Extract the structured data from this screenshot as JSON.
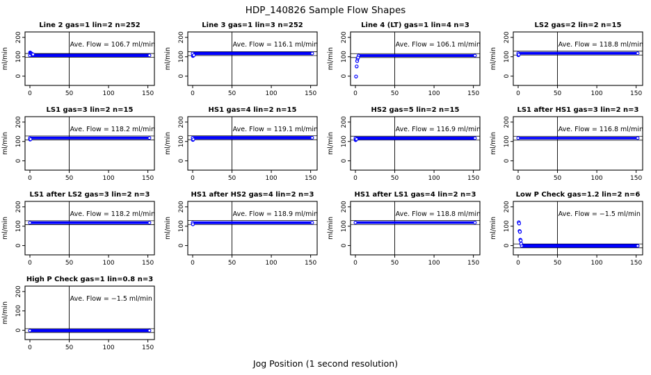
{
  "main": {
    "title": "HDP_140826  Sample Flow Shapes",
    "xlabel": "Jog Position (1 second resolution)"
  },
  "labels": {
    "ave_prefix": "Ave. Flow =",
    "unit": "ml/min"
  },
  "colors": {
    "point": "#0000FF",
    "axis": "#000000",
    "background": "#FFFFFF"
  },
  "chart_data": {
    "type": "scatter",
    "title": "HDP_140826  Sample Flow Shapes",
    "xlabel": "Jog Position (1 second resolution)",
    "ylabel": "ml/min",
    "legend": "none",
    "grid": "off",
    "axes": {
      "xlim": [
        -6.2,
        158.3
      ],
      "ylim": [
        -48,
        228
      ],
      "xticks": [
        0,
        50,
        100,
        150
      ],
      "yticks": [
        0,
        100,
        200
      ],
      "vline": 50
    },
    "plots": [
      {
        "title": "Line 2 gas=1 lin=2 n=252",
        "ave_flow": 106.7,
        "ave_label": "Ave. Flow =  106.7  ml/min",
        "band": {
          "x0": 0,
          "x1": 152,
          "center": 107,
          "half": 8
        },
        "ref_lines": [
          96.7,
          116.7
        ],
        "lead_points": [
          [
            0.3,
            122
          ],
          [
            0.8,
            120
          ],
          [
            1.3,
            118
          ],
          [
            2,
            116
          ],
          [
            3,
            114
          ],
          [
            4,
            112
          ]
        ]
      },
      {
        "title": "Line 3 gas=1 lin=3 n=252",
        "ave_flow": 116.1,
        "ave_label": "Ave. Flow =  116.1  ml/min",
        "band": {
          "x0": 0,
          "x1": 152,
          "center": 117,
          "half": 8
        },
        "ref_lines": [
          106.1,
          126.1
        ],
        "lead_points": [
          [
            0.3,
            104
          ],
          [
            0.8,
            106
          ],
          [
            1.5,
            108
          ]
        ]
      },
      {
        "title": "Line 4 (LT) gas=1 lin=4 n=3",
        "ave_flow": 106.1,
        "ave_label": "Ave. Flow =  106.1  ml/min",
        "band": {
          "x0": 4,
          "x1": 152,
          "center": 106,
          "half": 7
        },
        "ref_lines": [
          96.1,
          116.1
        ],
        "lead_points": [
          [
            0.8,
            -2
          ],
          [
            1.6,
            50
          ],
          [
            2.2,
            78
          ],
          [
            2.8,
            90
          ],
          [
            3.4,
            96
          ]
        ]
      },
      {
        "title": "LS2 gas=2 lin=2 n=15",
        "ave_flow": 118.8,
        "ave_label": "Ave. Flow =  118.8  ml/min",
        "band": {
          "x0": 0,
          "x1": 152,
          "center": 118,
          "half": 7
        },
        "ref_lines": [
          108.8,
          128.8
        ],
        "lead_points": [
          [
            0.3,
            108
          ],
          [
            0.8,
            111
          ]
        ]
      },
      {
        "title": "LS1 gas=3 lin=2 n=15",
        "ave_flow": 118.2,
        "ave_label": "Ave. Flow =  118.2  ml/min",
        "band": {
          "x0": 0,
          "x1": 152,
          "center": 118,
          "half": 7
        },
        "ref_lines": [
          108.2,
          128.2
        ],
        "lead_points": [
          [
            0.3,
            110
          ],
          [
            0.8,
            112
          ]
        ]
      },
      {
        "title": "HS1 gas=4 lin=2 n=15",
        "ave_flow": 119.1,
        "ave_label": "Ave. Flow =  119.1  ml/min",
        "band": {
          "x0": 0,
          "x1": 152,
          "center": 119,
          "half": 8
        },
        "ref_lines": [
          109.1,
          129.1
        ],
        "lead_points": [
          [
            0.3,
            108
          ],
          [
            0.8,
            111
          ]
        ]
      },
      {
        "title": "HS2 gas=5 lin=2 n=15",
        "ave_flow": 116.9,
        "ave_label": "Ave. Flow =  116.9  ml/min",
        "band": {
          "x0": 0,
          "x1": 152,
          "center": 117,
          "half": 8
        },
        "ref_lines": [
          106.9,
          126.9
        ],
        "lead_points": [
          [
            0.3,
            107
          ],
          [
            0.8,
            110
          ],
          [
            1.4,
            112
          ]
        ]
      },
      {
        "title": "LS1 after HS1 gas=3 lin=2 n=3",
        "ave_flow": 116.8,
        "ave_label": "Ave. Flow =  116.8  ml/min",
        "band": {
          "x0": 0,
          "x1": 152,
          "center": 117.5,
          "half": 6
        },
        "ref_lines": [
          106.8,
          126.8
        ],
        "lead_points": []
      },
      {
        "title": "LS1 after LS2 gas=3 lin=2 n=3",
        "ave_flow": 118.2,
        "ave_label": "Ave. Flow =  118.2  ml/min",
        "band": {
          "x0": 0,
          "x1": 152,
          "center": 118,
          "half": 7
        },
        "ref_lines": [
          108.2,
          128.2
        ],
        "lead_points": []
      },
      {
        "title": "HS1 after HS2 gas=4 lin=2 n=3",
        "ave_flow": 118.9,
        "ave_label": "Ave. Flow =  118.9  ml/min",
        "band": {
          "x0": 0,
          "x1": 152,
          "center": 118,
          "half": 7
        },
        "ref_lines": [
          108.9,
          128.9
        ],
        "lead_points": [
          [
            0.3,
            110
          ]
        ]
      },
      {
        "title": "HS1 after LS1 gas=4 lin=2 n=3",
        "ave_flow": 118.8,
        "ave_label": "Ave. Flow =  118.8  ml/min",
        "band": {
          "x0": 0,
          "x1": 152,
          "center": 118.5,
          "half": 6
        },
        "ref_lines": [
          108.8,
          128.8
        ],
        "lead_points": []
      },
      {
        "title": "Low P Check gas=1.2 lin=2 n=6",
        "ave_flow": -1.5,
        "ave_label": "Ave. Flow =  −1.5  ml/min",
        "band": {
          "x0": 4.5,
          "x1": 152,
          "center": -1.5,
          "half": 9
        },
        "ref_lines": [
          -11.5,
          8.5
        ],
        "lead_points": [
          [
            0.8,
            120
          ],
          [
            1.2,
            114
          ],
          [
            1.8,
            75
          ],
          [
            2.2,
            71
          ],
          [
            2.8,
            30
          ],
          [
            3.2,
            26
          ],
          [
            3.8,
            10
          ]
        ]
      },
      {
        "title": "High P Check gas=1 lin=0.8 n=3",
        "ave_flow": -1.5,
        "ave_label": "Ave. Flow =  −1.5  ml/min",
        "band": {
          "x0": 0,
          "x1": 152,
          "center": -1.5,
          "half": 8
        },
        "ref_lines": [
          -11.5,
          8.5
        ],
        "lead_points": []
      }
    ]
  }
}
